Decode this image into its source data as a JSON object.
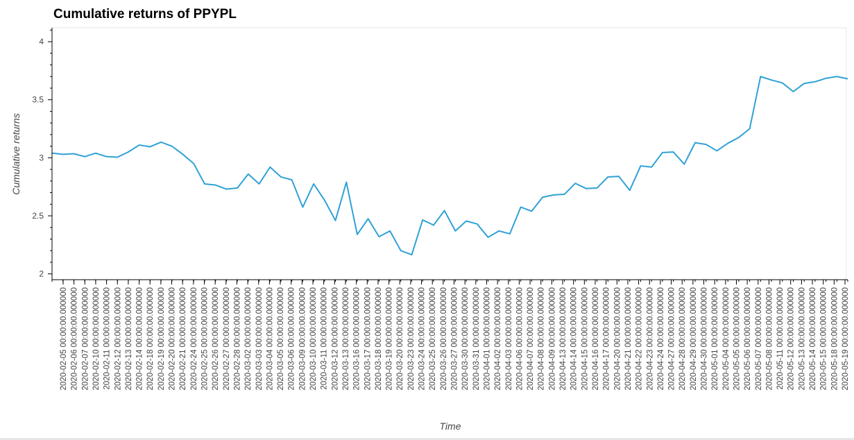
{
  "chart_data": {
    "type": "line",
    "title": "Cumulative returns of PPYPL",
    "xlabel": "Time",
    "ylabel": "Cumulative returns",
    "ylim": [
      1.95,
      4.12
    ],
    "yticks": [
      2,
      2.5,
      3,
      3.5,
      4
    ],
    "ytick_labels": [
      "2",
      "2.5",
      "3",
      "3.5",
      "4"
    ],
    "legend": "none",
    "grid": false,
    "line_color": "#2fa1d6",
    "x": [
      "2020-02-05 00:00:00.000000",
      "2020-02-06 00:00:00.000000",
      "2020-02-07 00:00:00.000000",
      "2020-02-10 00:00:00.000000",
      "2020-02-11 00:00:00.000000",
      "2020-02-12 00:00:00.000000",
      "2020-02-13 00:00:00.000000",
      "2020-02-14 00:00:00.000000",
      "2020-02-18 00:00:00.000000",
      "2020-02-19 00:00:00.000000",
      "2020-02-20 00:00:00.000000",
      "2020-02-21 00:00:00.000000",
      "2020-02-24 00:00:00.000000",
      "2020-02-25 00:00:00.000000",
      "2020-02-26 00:00:00.000000",
      "2020-02-27 00:00:00.000000",
      "2020-02-28 00:00:00.000000",
      "2020-03-02 00:00:00.000000",
      "2020-03-03 00:00:00.000000",
      "2020-03-04 00:00:00.000000",
      "2020-03-05 00:00:00.000000",
      "2020-03-06 00:00:00.000000",
      "2020-03-09 00:00:00.000000",
      "2020-03-10 00:00:00.000000",
      "2020-03-11 00:00:00.000000",
      "2020-03-12 00:00:00.000000",
      "2020-03-13 00:00:00.000000",
      "2020-03-16 00:00:00.000000",
      "2020-03-17 00:00:00.000000",
      "2020-03-18 00:00:00.000000",
      "2020-03-19 00:00:00.000000",
      "2020-03-20 00:00:00.000000",
      "2020-03-23 00:00:00.000000",
      "2020-03-24 00:00:00.000000",
      "2020-03-25 00:00:00.000000",
      "2020-03-26 00:00:00.000000",
      "2020-03-27 00:00:00.000000",
      "2020-03-30 00:00:00.000000",
      "2020-03-31 00:00:00.000000",
      "2020-04-01 00:00:00.000000",
      "2020-04-02 00:00:00.000000",
      "2020-04-03 00:00:00.000000",
      "2020-04-06 00:00:00.000000",
      "2020-04-07 00:00:00.000000",
      "2020-04-08 00:00:00.000000",
      "2020-04-09 00:00:00.000000",
      "2020-04-13 00:00:00.000000",
      "2020-04-14 00:00:00.000000",
      "2020-04-15 00:00:00.000000",
      "2020-04-16 00:00:00.000000",
      "2020-04-17 00:00:00.000000",
      "2020-04-20 00:00:00.000000",
      "2020-04-21 00:00:00.000000",
      "2020-04-22 00:00:00.000000",
      "2020-04-23 00:00:00.000000",
      "2020-04-24 00:00:00.000000",
      "2020-04-27 00:00:00.000000",
      "2020-04-28 00:00:00.000000",
      "2020-04-29 00:00:00.000000",
      "2020-04-30 00:00:00.000000",
      "2020-05-01 00:00:00.000000",
      "2020-05-04 00:00:00.000000",
      "2020-05-05 00:00:00.000000",
      "2020-05-06 00:00:00.000000",
      "2020-05-07 00:00:00.000000",
      "2020-05-08 00:00:00.000000",
      "2020-05-11 00:00:00.000000",
      "2020-05-12 00:00:00.000000",
      "2020-05-13 00:00:00.000000",
      "2020-05-14 00:00:00.000000",
      "2020-05-15 00:00:00.000000",
      "2020-05-18 00:00:00.000000",
      "2020-05-19 00:00:00.000000",
      "2020-05-20 00:00:00.000000"
    ],
    "series": [
      {
        "values": [
          3.04,
          3.03,
          3.035,
          3.01,
          3.04,
          3.01,
          3.005,
          3.05,
          3.11,
          3.095,
          3.135,
          3.1,
          3.03,
          2.95,
          2.775,
          2.765,
          2.73,
          2.74,
          2.86,
          2.775,
          2.92,
          2.835,
          2.81,
          2.575,
          2.775,
          2.635,
          2.46,
          2.79,
          2.34,
          2.475,
          2.32,
          2.37,
          2.2,
          2.165,
          2.465,
          2.42,
          2.545,
          2.37,
          2.455,
          2.43,
          2.315,
          2.37,
          2.345,
          2.575,
          2.54,
          2.66,
          2.68,
          2.685,
          2.78,
          2.735,
          2.74,
          2.835,
          2.84,
          2.72,
          2.93,
          2.92,
          3.045,
          3.05,
          2.945,
          3.13,
          3.115,
          3.06,
          3.125,
          3.175,
          3.25,
          3.7,
          3.67,
          3.645,
          3.57,
          3.64,
          3.655,
          3.685,
          3.7,
          3.68
        ]
      }
    ]
  }
}
